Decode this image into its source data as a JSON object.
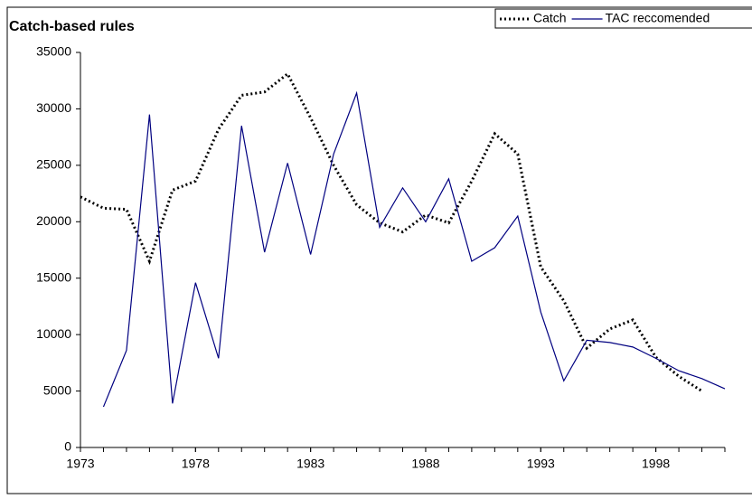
{
  "chart_data": {
    "type": "line",
    "title": "Catch-based rules",
    "xlim": [
      1973,
      2001
    ],
    "xticks": [
      1973,
      1978,
      1983,
      1988,
      1993,
      1998
    ],
    "ylim": [
      0,
      35000
    ],
    "yticks": [
      0,
      5000,
      10000,
      15000,
      20000,
      25000,
      30000,
      35000
    ],
    "series": [
      {
        "name": "Catch",
        "color": "#000000",
        "dash": "dotted",
        "x": [
          1973,
          1974,
          1975,
          1976,
          1977,
          1978,
          1979,
          1980,
          1981,
          1982,
          1983,
          1984,
          1985,
          1986,
          1987,
          1988,
          1989,
          1990,
          1991,
          1992,
          1993,
          1994,
          1995,
          1996,
          1997,
          1998,
          1999,
          2000
        ],
        "values": [
          22200,
          21200,
          21100,
          16500,
          22800,
          23600,
          28200,
          31200,
          31500,
          33100,
          29200,
          25000,
          21500,
          19900,
          19100,
          20600,
          19900,
          23600,
          27800,
          26000,
          16000,
          13000,
          8800,
          10500,
          11300,
          8000,
          6300,
          5000
        ]
      },
      {
        "name": "TAC reccomended",
        "color": "#000080",
        "dash": "solid",
        "x": [
          1974,
          1975,
          1976,
          1977,
          1978,
          1979,
          1980,
          1981,
          1982,
          1983,
          1984,
          1985,
          1986,
          1987,
          1988,
          1989,
          1990,
          1991,
          1992,
          1993,
          1994,
          1995,
          1996,
          1997,
          1998,
          1999,
          2000,
          2001
        ],
        "values": [
          3600,
          8600,
          29500,
          3900,
          14600,
          7900,
          28500,
          17300,
          25200,
          17100,
          26000,
          31400,
          19500,
          23000,
          20000,
          23800,
          16500,
          17700,
          20500,
          12000,
          5900,
          9500,
          9300,
          8900,
          7900,
          6800,
          6100,
          5200
        ]
      }
    ]
  }
}
